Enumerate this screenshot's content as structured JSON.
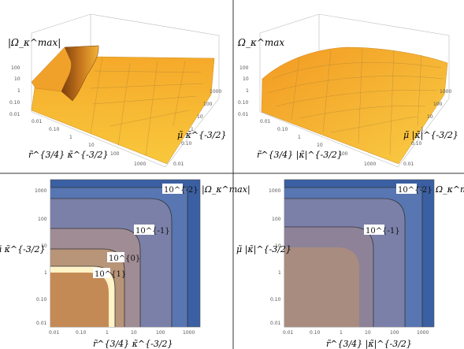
{
  "panels": [
    {
      "type": "surface3d",
      "zlabel": "|Ω_κ^max|",
      "xlabel": "r̃^{3/4} κ̃^{-3/2}",
      "ylabel": "μ̃ κ̃^{-3/2}",
      "z_ticks": [
        "100",
        "10",
        "1",
        "0.10",
        "0.01"
      ],
      "x_ticks": [
        "0.01",
        "0.10",
        "1",
        "10",
        "100",
        "1000"
      ],
      "y_ticks": [
        "1000",
        "100",
        "10",
        "1",
        "0.10",
        "0.01"
      ],
      "note": "surface with sharp spike near small x"
    },
    {
      "type": "surface3d",
      "zlabel": "Ω_κ^max",
      "xlabel": "r̃^{3/4} |κ̃|^{-3/2}",
      "ylabel": "μ̃ |κ̃|^{-3/2}",
      "z_ticks": [
        "100",
        "10",
        "1",
        "0.10",
        "0.01"
      ],
      "x_ticks": [
        "0.01",
        "0.10",
        "1",
        "10",
        "100",
        "1000"
      ],
      "y_ticks": [
        "1000",
        "100",
        "10",
        "1",
        "0.10",
        "0.01"
      ]
    },
    {
      "type": "contour",
      "corner_label": "|Ω_κ^max|",
      "xlabel": "r̃^{3/4} κ̃^{-3/2}",
      "ylabel": "μ̃ κ̃^{-3/2}",
      "x_ticks": [
        "0.01",
        "0.10",
        "1",
        "10",
        "100",
        "1000"
      ],
      "y_ticks": [
        "1000",
        "100",
        "10",
        "1",
        "0.10",
        "0.01"
      ],
      "contour_labels": [
        "10^{-2}",
        "10^{-1}",
        "10^{0}",
        "10^{1}"
      ]
    },
    {
      "type": "contour",
      "corner_label": "Ω_κ^max",
      "xlabel": "r̃^{3/4} |κ̃|^{-3/2}",
      "ylabel": "μ̃ |κ̃|^{-3/2}",
      "x_ticks": [
        "0.01",
        "0.10",
        "1",
        "10",
        "100",
        "1000"
      ],
      "y_ticks": [
        "1000",
        "100",
        "10",
        "1",
        "0.10",
        "0.01"
      ],
      "contour_labels": [
        "10^{-2}",
        "10^{-1}"
      ]
    }
  ],
  "chart_data": [
    {
      "type": "heatmap",
      "title": "",
      "xlabel": "r̃^{3/4} κ̃^{-3/2}",
      "ylabel": "μ̃ κ̃^{-3/2}",
      "xscale": "log",
      "yscale": "log",
      "xlim": [
        0.01,
        1000
      ],
      "ylim": [
        0.01,
        1000
      ],
      "zlabel": "|Ω_κ^max|",
      "contour_levels": [
        0.01,
        0.1,
        1,
        10
      ]
    },
    {
      "type": "heatmap",
      "title": "",
      "xlabel": "r̃^{3/4} |κ̃|^{-3/2}",
      "ylabel": "μ̃ |κ̃|^{-3/2}",
      "xscale": "log",
      "yscale": "log",
      "xlim": [
        0.01,
        1000
      ],
      "ylim": [
        0.01,
        1000
      ],
      "zlabel": "Ω_κ^max",
      "contour_levels": [
        0.01,
        0.1
      ]
    }
  ],
  "colors": {
    "surface_orange": "#f5a623",
    "surface_yellow": "#f8c63a",
    "surface_dark": "#8a4a10",
    "blue_dark": "#3a5fa2",
    "blue_mid": "#5876b2",
    "slate": "#7a80a8",
    "mauve": "#a08c94",
    "tan": "#b89478",
    "orange_core": "#c48a56",
    "cream": "#fff3c8"
  }
}
